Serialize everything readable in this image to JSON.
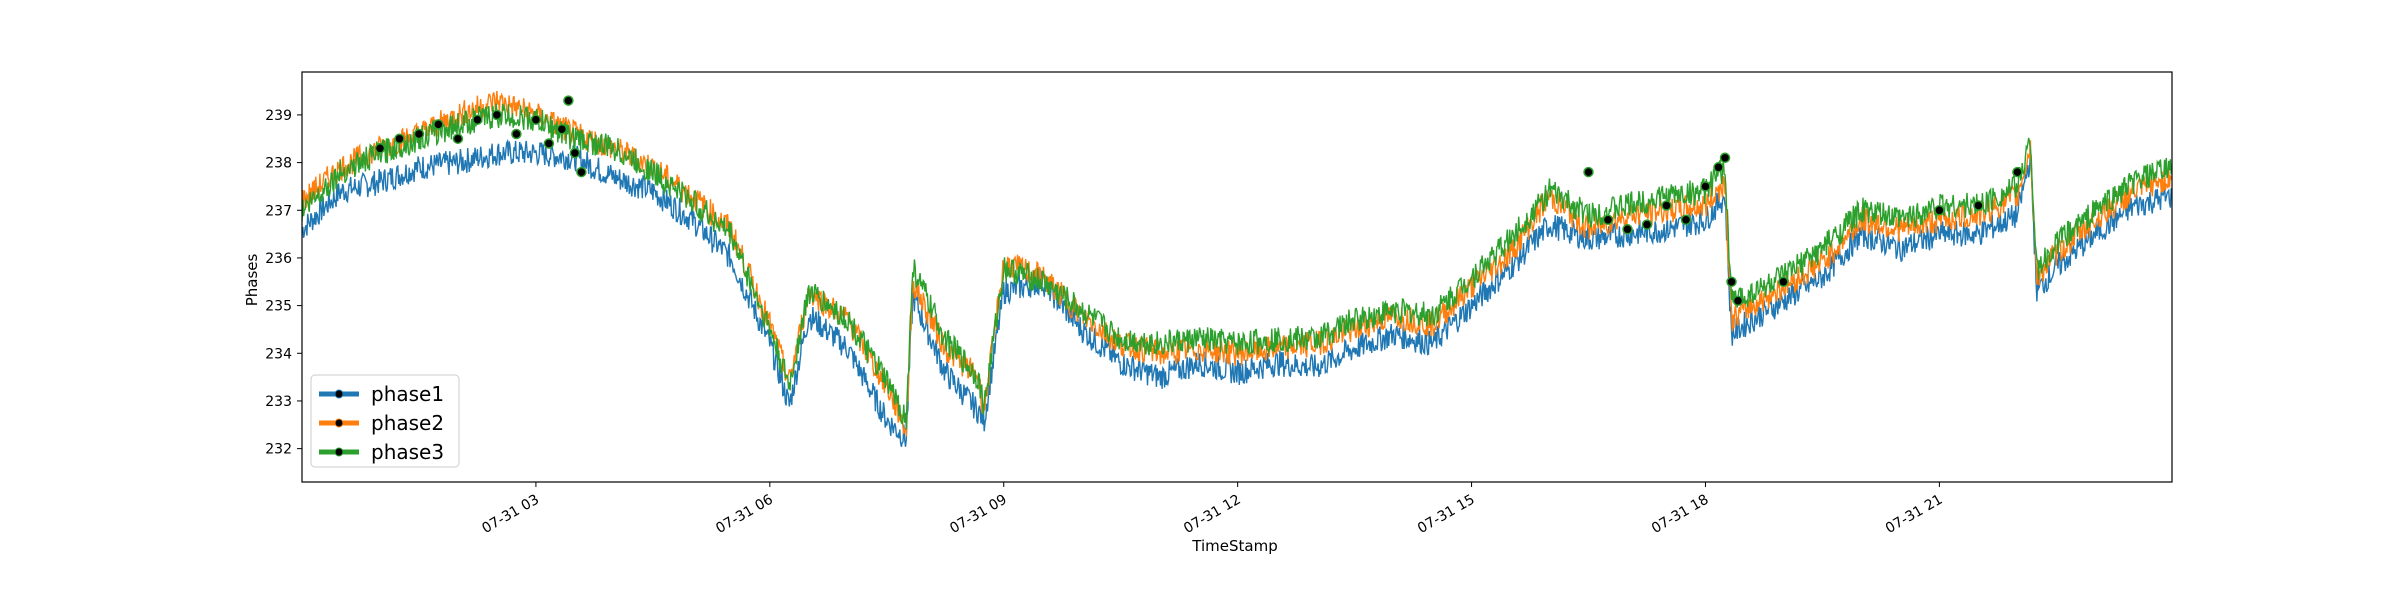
{
  "chart_data": {
    "type": "line",
    "title": "",
    "xlabel": "TimeStamp",
    "ylabel": "Phases",
    "xlim": [
      "2023-07-31 00:00",
      "2023-07-31 23:59"
    ],
    "ylim": [
      231.3,
      239.9
    ],
    "grid": false,
    "legend_position": "lower-left",
    "x_ticks": [
      {
        "label": "07-31 03",
        "value": "2023-07-31 03:00"
      },
      {
        "label": "07-31 06",
        "value": "2023-07-31 06:00"
      },
      {
        "label": "07-31 09",
        "value": "2023-07-31 09:00"
      },
      {
        "label": "07-31 12",
        "value": "2023-07-31 12:00"
      },
      {
        "label": "07-31 15",
        "value": "2023-07-31 15:00"
      },
      {
        "label": "07-31 18",
        "value": "2023-07-31 18:00"
      },
      {
        "label": "07-31 21",
        "value": "2023-07-31 21:00"
      }
    ],
    "y_ticks": [
      232,
      233,
      234,
      235,
      236,
      237,
      238,
      239
    ],
    "x": [
      "00:00",
      "00:30",
      "01:00",
      "01:30",
      "02:00",
      "02:30",
      "03:00",
      "03:30",
      "04:00",
      "04:30",
      "05:00",
      "05:30",
      "06:00",
      "06:15",
      "06:30",
      "07:00",
      "07:30",
      "07:45",
      "07:50",
      "08:15",
      "08:40",
      "08:45",
      "09:00",
      "09:30",
      "10:00",
      "10:30",
      "11:00",
      "11:30",
      "12:00",
      "12:30",
      "13:00",
      "13:30",
      "14:00",
      "14:30",
      "15:00",
      "15:30",
      "16:00",
      "16:30",
      "17:00",
      "17:30",
      "18:00",
      "18:15",
      "18:20",
      "18:30",
      "19:00",
      "19:30",
      "20:00",
      "20:30",
      "21:00",
      "21:30",
      "22:00",
      "22:10",
      "22:15",
      "22:30",
      "23:00",
      "23:30",
      "23:59"
    ],
    "series": [
      {
        "name": "phase1",
        "color": "#1f77b4",
        "values": [
          236.6,
          237.4,
          237.6,
          237.9,
          238.0,
          238.2,
          238.2,
          238.1,
          237.7,
          237.4,
          236.8,
          236.0,
          234.2,
          232.9,
          234.8,
          234.1,
          232.6,
          232.2,
          235.2,
          233.6,
          232.8,
          232.6,
          235.3,
          235.5,
          234.5,
          233.8,
          233.5,
          233.8,
          233.6,
          233.8,
          233.7,
          234.1,
          234.4,
          234.2,
          235.0,
          235.8,
          236.7,
          236.4,
          236.5,
          236.6,
          236.8,
          237.3,
          234.4,
          234.6,
          235.1,
          235.6,
          236.5,
          236.2,
          236.5,
          236.5,
          236.9,
          238.1,
          235.3,
          235.8,
          236.5,
          237.1,
          237.3
        ]
      },
      {
        "name": "phase2",
        "color": "#ff7f0e",
        "values": [
          237.2,
          237.9,
          238.3,
          238.6,
          239.0,
          239.3,
          239.0,
          238.6,
          238.3,
          237.9,
          237.3,
          236.6,
          234.6,
          233.4,
          235.3,
          234.7,
          233.3,
          232.4,
          235.5,
          234.1,
          233.5,
          232.8,
          235.9,
          235.6,
          234.8,
          234.2,
          234.0,
          234.1,
          234.0,
          234.1,
          234.2,
          234.5,
          234.8,
          234.6,
          235.4,
          236.1,
          237.3,
          236.6,
          236.9,
          237.0,
          237.1,
          237.6,
          234.7,
          234.9,
          235.4,
          235.9,
          236.8,
          236.6,
          236.8,
          236.9,
          237.3,
          238.3,
          235.6,
          236.1,
          236.8,
          237.4,
          237.7
        ]
      },
      {
        "name": "phase3",
        "color": "#2ca02c",
        "values": [
          237.0,
          237.8,
          238.2,
          238.5,
          238.8,
          239.0,
          238.9,
          238.5,
          238.3,
          237.8,
          237.2,
          236.5,
          234.5,
          233.3,
          235.3,
          234.7,
          233.4,
          232.6,
          235.8,
          234.3,
          233.5,
          232.9,
          235.8,
          235.5,
          234.9,
          234.3,
          234.2,
          234.3,
          234.2,
          234.3,
          234.3,
          234.7,
          234.9,
          234.8,
          235.6,
          236.4,
          237.4,
          236.9,
          237.1,
          237.3,
          237.4,
          237.9,
          235.1,
          235.2,
          235.6,
          236.2,
          237.0,
          236.8,
          237.1,
          237.1,
          237.5,
          238.5,
          235.7,
          236.3,
          237.0,
          237.6,
          237.9
        ]
      }
    ],
    "markers": {
      "style": "black circle with series-colored edge",
      "points": [
        {
          "x": "01:00",
          "y": 238.3
        },
        {
          "x": "01:15",
          "y": 238.5
        },
        {
          "x": "01:30",
          "y": 238.6
        },
        {
          "x": "01:45",
          "y": 238.8
        },
        {
          "x": "02:00",
          "y": 238.5
        },
        {
          "x": "02:15",
          "y": 238.9
        },
        {
          "x": "02:30",
          "y": 239.0
        },
        {
          "x": "02:45",
          "y": 238.6
        },
        {
          "x": "03:00",
          "y": 238.9
        },
        {
          "x": "03:10",
          "y": 238.4
        },
        {
          "x": "03:20",
          "y": 238.7
        },
        {
          "x": "03:25",
          "y": 239.3
        },
        {
          "x": "03:30",
          "y": 238.2
        },
        {
          "x": "03:35",
          "y": 237.8
        },
        {
          "x": "16:30",
          "y": 237.8
        },
        {
          "x": "16:45",
          "y": 236.8
        },
        {
          "x": "17:00",
          "y": 236.6
        },
        {
          "x": "17:15",
          "y": 236.7
        },
        {
          "x": "17:30",
          "y": 237.1
        },
        {
          "x": "17:45",
          "y": 236.8
        },
        {
          "x": "18:00",
          "y": 237.5
        },
        {
          "x": "18:10",
          "y": 237.9
        },
        {
          "x": "18:15",
          "y": 238.1
        },
        {
          "x": "18:20",
          "y": 235.5
        },
        {
          "x": "18:25",
          "y": 235.1
        },
        {
          "x": "19:00",
          "y": 235.5
        },
        {
          "x": "21:00",
          "y": 237.0
        },
        {
          "x": "21:30",
          "y": 237.1
        },
        {
          "x": "22:00",
          "y": 237.8
        }
      ]
    }
  }
}
